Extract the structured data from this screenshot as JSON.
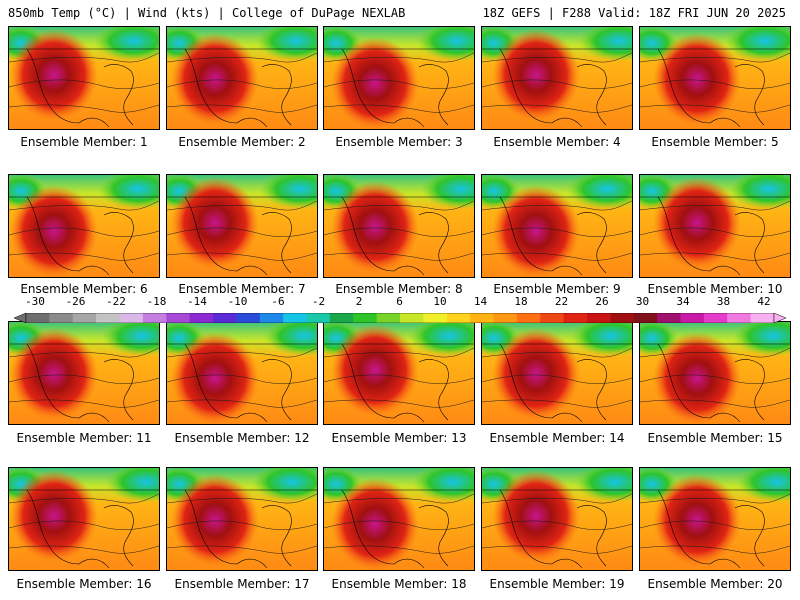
{
  "header": {
    "left": "850mb Temp (°C) | Wind (kts) | College of DuPage NEXLAB",
    "right": "18Z GEFS | F288 Valid: 18Z FRI JUN 20 2025"
  },
  "members": [
    {
      "label": "Ensemble Member: 1"
    },
    {
      "label": "Ensemble Member: 2"
    },
    {
      "label": "Ensemble Member: 3"
    },
    {
      "label": "Ensemble Member: 4"
    },
    {
      "label": "Ensemble Member: 5"
    },
    {
      "label": "Ensemble Member: 6"
    },
    {
      "label": "Ensemble Member: 7"
    },
    {
      "label": "Ensemble Member: 8"
    },
    {
      "label": "Ensemble Member: 9"
    },
    {
      "label": "Ensemble Member: 10"
    },
    {
      "label": "Ensemble Member: 11"
    },
    {
      "label": "Ensemble Member: 12"
    },
    {
      "label": "Ensemble Member: 13"
    },
    {
      "label": "Ensemble Member: 14"
    },
    {
      "label": "Ensemble Member: 15"
    },
    {
      "label": "Ensemble Member: 16"
    },
    {
      "label": "Ensemble Member: 17"
    },
    {
      "label": "Ensemble Member: 18"
    },
    {
      "label": "Ensemble Member: 19"
    },
    {
      "label": "Ensemble Member: 20"
    }
  ],
  "colorbar": {
    "ticks": [
      "-30",
      "-26",
      "-22",
      "-18",
      "-14",
      "-10",
      "-6",
      "-2",
      "2",
      "6",
      "10",
      "14",
      "18",
      "22",
      "26",
      "30",
      "34",
      "38",
      "42"
    ],
    "colors": [
      "#6e6e6e",
      "#8a8a8a",
      "#a6a6a6",
      "#c3c3c3",
      "#d9b8e8",
      "#c47ee0",
      "#a64ad6",
      "#8a2ad0",
      "#5b2ad6",
      "#2a4ad8",
      "#1e88e8",
      "#16c4e8",
      "#18c8a8",
      "#1aa84a",
      "#2ec42a",
      "#78d428",
      "#c8e62a",
      "#f0f02a",
      "#ffd21e",
      "#ffb414",
      "#ff9614",
      "#ff7014",
      "#f04814",
      "#e02414",
      "#c81414",
      "#a01010",
      "#80101a",
      "#a0106e",
      "#c81aa6",
      "#e63ccc",
      "#f07ae0",
      "#f8b0f0"
    ]
  }
}
